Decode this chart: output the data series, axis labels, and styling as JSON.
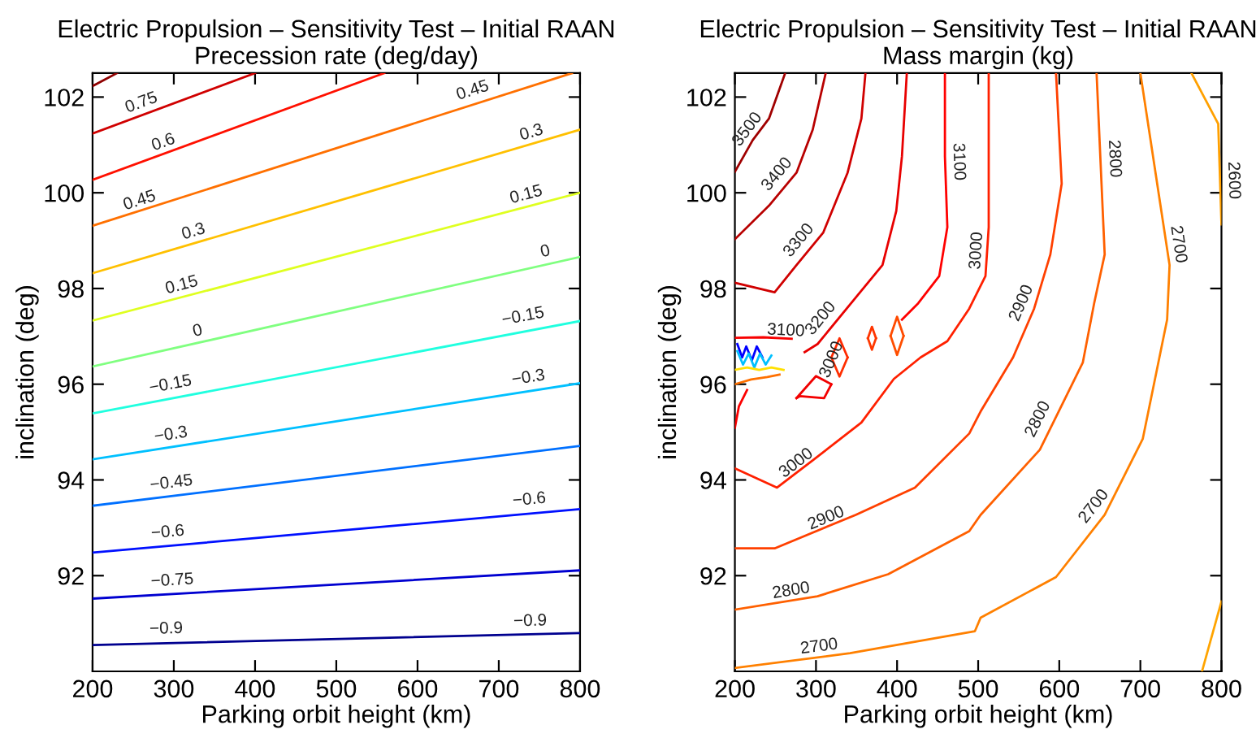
{
  "chart_data": [
    {
      "type": "line",
      "title": "Electric Propulsion – Sensitivity Test – Initial RAAN",
      "subtitle": "Precession rate (deg/day)",
      "xlabel": "Parking orbit height (km)",
      "ylabel": "inclination (deg)",
      "xlim": [
        200,
        800
      ],
      "ylim": [
        90,
        102.5
      ],
      "xticks": [
        200,
        300,
        400,
        500,
        600,
        700,
        800
      ],
      "yticks": [
        92,
        94,
        96,
        98,
        100,
        102
      ],
      "grid": false,
      "legend": false,
      "series": [
        {
          "color": "#8f0000",
          "x": [
            200,
            230
          ],
          "values": [
            102.23,
            102.5
          ]
        },
        {
          "color": "#d00000",
          "x": [
            200,
            400
          ],
          "values": [
            101.24,
            102.5
          ]
        },
        {
          "color": "#ff1000",
          "x": [
            200,
            559
          ],
          "values": [
            100.27,
            102.5
          ]
        },
        {
          "color": "#ff7000",
          "x": [
            200,
            790
          ],
          "values": [
            99.31,
            102.5
          ]
        },
        {
          "color": "#ffc000",
          "x": [
            200,
            800
          ],
          "values": [
            98.32,
            101.32
          ]
        },
        {
          "color": "#dfff20",
          "x": [
            200,
            800
          ],
          "values": [
            97.33,
            100.0
          ]
        },
        {
          "color": "#80ff80",
          "x": [
            200,
            800
          ],
          "values": [
            96.37,
            98.66
          ]
        },
        {
          "color": "#20ffdf",
          "x": [
            200,
            800
          ],
          "values": [
            95.39,
            97.32
          ]
        },
        {
          "color": "#00c0ff",
          "x": [
            200,
            800
          ],
          "values": [
            94.43,
            96.02
          ]
        },
        {
          "color": "#0070ff",
          "x": [
            200,
            800
          ],
          "values": [
            93.46,
            94.71
          ]
        },
        {
          "color": "#0010ff",
          "x": [
            200,
            800
          ],
          "values": [
            92.48,
            93.39
          ]
        },
        {
          "color": "#0000d0",
          "x": [
            200,
            800
          ],
          "values": [
            91.52,
            92.11
          ]
        },
        {
          "color": "#00008f",
          "x": [
            200,
            800
          ],
          "values": [
            90.55,
            90.8
          ]
        }
      ],
      "annotations": [
        {
          "text": "0.75",
          "x": 266,
          "y": 101.61
        },
        {
          "text": "0.6",
          "x": 293,
          "y": 100.78
        },
        {
          "text": "0.45",
          "x": 263,
          "y": 99.56
        },
        {
          "text": "0.3",
          "x": 329,
          "y": 98.91
        },
        {
          "text": "0.15",
          "x": 314,
          "y": 97.79
        },
        {
          "text": "0",
          "x": 333,
          "y": 96.83
        },
        {
          "text": "0.45",
          "x": 673,
          "y": 101.86
        },
        {
          "text": "0.3",
          "x": 745,
          "y": 100.98
        },
        {
          "text": "0.15",
          "x": 738,
          "y": 99.68
        },
        {
          "text": "0",
          "x": 761,
          "y": 98.49
        },
        {
          "text": "−0.15",
          "x": 733,
          "y": 97.13
        },
        {
          "text": "−0.15",
          "x": 299,
          "y": 95.71
        },
        {
          "text": "−0.3",
          "x": 299,
          "y": 94.66
        },
        {
          "text": "−0.45",
          "x": 299,
          "y": 93.65
        },
        {
          "text": "−0.6",
          "x": 294,
          "y": 92.62
        },
        {
          "text": "−0.75",
          "x": 299,
          "y": 91.61
        },
        {
          "text": "−0.9",
          "x": 291,
          "y": 90.6
        },
        {
          "text": "−0.3",
          "x": 739,
          "y": 95.85
        },
        {
          "text": "−0.6",
          "x": 739,
          "y": 93.3
        },
        {
          "text": "−0.9",
          "x": 739,
          "y": 90.76
        }
      ]
    },
    {
      "type": "line",
      "title": "Electric Propulsion – Sensitivity Test – Initial RAAN",
      "subtitle": "Mass margin (kg)",
      "xlabel": "Parking orbit height (km)",
      "ylabel": "inclination (deg)",
      "xlim": [
        200,
        800
      ],
      "ylim": [
        90,
        102.5
      ],
      "xticks": [
        200,
        300,
        400,
        500,
        600,
        700,
        800
      ],
      "yticks": [
        92,
        94,
        96,
        98,
        100,
        102
      ],
      "grid": false,
      "legend": false,
      "series": [
        {
          "color": "#a00000",
          "x": [
            200,
            222,
            242,
            262
          ],
          "values": [
            100.44,
            101.1,
            101.55,
            102.5
          ]
        },
        {
          "color": "#b80000",
          "x": [
            200,
            242,
            276,
            296,
            312
          ],
          "values": [
            99.03,
            99.73,
            100.42,
            101.32,
            102.5
          ]
        },
        {
          "color": "#d00000",
          "x": [
            200,
            249,
            276,
            309,
            339,
            356,
            361
          ],
          "values": [
            98.12,
            97.92,
            98.49,
            99.17,
            100.42,
            101.55,
            102.5
          ]
        },
        {
          "color": "#e80000",
          "x": [
            286,
            302,
            349,
            382,
            399,
            406,
            412
          ],
          "values": [
            96.67,
            96.84,
            97.81,
            98.49,
            99.62,
            100.76,
            102.5
          ]
        },
        {
          "color": "#ff0000",
          "x": [
            406,
            426,
            452,
            462,
            459,
            459
          ],
          "values": [
            97.35,
            97.69,
            98.26,
            99.28,
            100.76,
            102.5
          ]
        },
        {
          "color": "#fc0000",
          "x": [
            215,
            205,
            200
          ],
          "values": [
            95.88,
            95.54,
            95.09
          ]
        },
        {
          "color": "#ff2000",
          "x": [
            200,
            252,
            296,
            356,
            396,
            429,
            462,
            489,
            509,
            513,
            513
          ],
          "values": [
            94.24,
            93.84,
            94.41,
            95.2,
            96.11,
            96.56,
            96.9,
            97.58,
            98.26,
            99.28,
            102.5
          ]
        },
        {
          "color": "#ff4000",
          "x": [
            200,
            249,
            349,
            422,
            489,
            503,
            543,
            569,
            589,
            603,
            596
          ],
          "values": [
            92.57,
            92.57,
            93.27,
            93.84,
            94.97,
            95.43,
            96.56,
            97.58,
            98.71,
            100.19,
            102.5
          ]
        },
        {
          "color": "#ff6000",
          "x": [
            200,
            302,
            389,
            489,
            503,
            576,
            629,
            643,
            656,
            646
          ],
          "values": [
            91.29,
            91.57,
            92.03,
            92.93,
            93.27,
            94.63,
            96.45,
            97.69,
            98.71,
            102.5
          ]
        },
        {
          "color": "#ff8000",
          "x": [
            200,
            342,
            496,
            503,
            596,
            656,
            703,
            733,
            736,
            700
          ],
          "values": [
            90.07,
            90.38,
            90.84,
            91.12,
            91.97,
            93.27,
            94.86,
            97.35,
            98.49,
            102.5
          ]
        },
        {
          "color": "#ffa000",
          "x": [
            763,
            796,
            800
          ],
          "values": [
            102.5,
            101.44,
            99.34
          ]
        },
        {
          "color": "#ffa400",
          "x": [
            776,
            800
          ],
          "values": [
            90.0,
            91.46
          ]
        },
        {
          "color": "#ff2a00",
          "x": [
            319,
            329,
            339
          ],
          "values": [
            96.56,
            96.96,
            96.56
          ]
        },
        {
          "color": "#ff2e00",
          "x": [
            319,
            329,
            339
          ],
          "values": [
            96.56,
            96.16,
            96.56
          ]
        },
        {
          "color": "#ff3400",
          "x": [
            364,
            369,
            374
          ],
          "values": [
            96.96,
            97.2,
            96.96
          ]
        },
        {
          "color": "#ff3800",
          "x": [
            364,
            369,
            374
          ],
          "values": [
            96.96,
            96.72,
            96.96
          ]
        },
        {
          "color": "#ff4a00",
          "x": [
            392,
            400,
            408
          ],
          "values": [
            97.01,
            97.41,
            97.01
          ]
        },
        {
          "color": "#ff4e00",
          "x": [
            392,
            400,
            408
          ],
          "values": [
            97.01,
            96.61,
            97.01
          ]
        },
        {
          "color": "#f00000",
          "x": [
            276,
            300,
            319
          ],
          "values": [
            95.71,
            96.17,
            96.0
          ]
        },
        {
          "color": "#f40000",
          "x": [
            276,
            280,
            310,
            319
          ],
          "values": [
            95.71,
            95.75,
            95.71,
            96.0
          ]
        },
        {
          "color": "#f80000",
          "x": [
            200,
            235,
            270
          ],
          "values": [
            96.97,
            96.98,
            96.95
          ]
        },
        {
          "color": "#0000ff",
          "x": [
            203,
            209,
            214,
            221,
            227,
            234
          ],
          "values": [
            96.84,
            96.56,
            96.79,
            96.5,
            96.79,
            96.56
          ]
        },
        {
          "color": "#00c0ff",
          "x": [
            203,
            210,
            217,
            224,
            231,
            238,
            245
          ],
          "values": [
            96.69,
            96.41,
            96.64,
            96.35,
            96.64,
            96.41,
            96.6
          ]
        },
        {
          "color": "#ffe000",
          "x": [
            200,
            215,
            230,
            245,
            260
          ],
          "values": [
            96.3,
            96.35,
            96.3,
            96.35,
            96.3
          ]
        },
        {
          "color": "#ff7000",
          "x": [
            200,
            220,
            240,
            255
          ],
          "values": [
            96.0,
            96.1,
            96.15,
            96.2
          ]
        }
      ],
      "annotations": [
        {
          "text": "3500",
          "x": 229,
          "y": 101.15
        },
        {
          "text": "3400",
          "x": 265,
          "y": 100.2
        },
        {
          "text": "3300",
          "x": 292,
          "y": 98.82
        },
        {
          "text": "3200",
          "x": 319,
          "y": 97.19
        },
        {
          "text": "3100",
          "x": 459,
          "y": 100.64
        },
        {
          "text": "3100",
          "x": 262,
          "y": 96.83
        },
        {
          "text": "3000",
          "x": 515,
          "y": 98.77
        },
        {
          "text": "3000",
          "x": 335,
          "y": 96.4
        },
        {
          "text": "3000",
          "x": 286,
          "y": 94.12
        },
        {
          "text": "2900",
          "x": 569,
          "y": 97.58
        },
        {
          "text": "2900",
          "x": 319,
          "y": 92.93
        },
        {
          "text": "2800",
          "x": 651,
          "y": 100.7
        },
        {
          "text": "2800",
          "x": 589,
          "y": 95.14
        },
        {
          "text": "2800",
          "x": 272,
          "y": 91.4
        },
        {
          "text": "2700",
          "x": 730,
          "y": 98.88
        },
        {
          "text": "2700",
          "x": 656,
          "y": 93.27
        },
        {
          "text": "2700",
          "x": 306,
          "y": 90.23
        },
        {
          "text": "2600",
          "x": 798,
          "y": 100.25
        }
      ]
    }
  ]
}
